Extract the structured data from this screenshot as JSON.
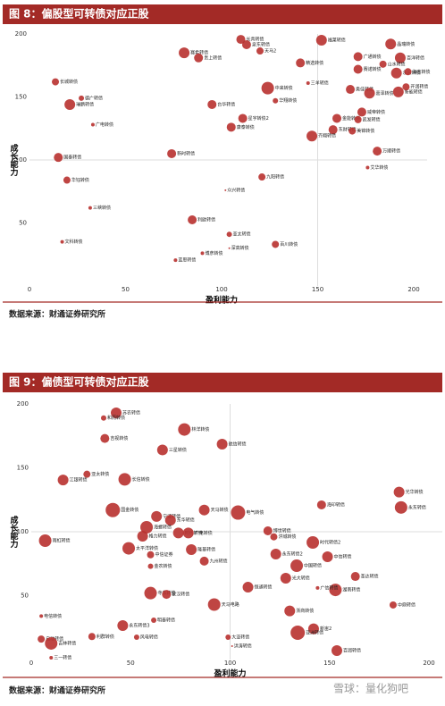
{
  "chart_data": [
    {
      "type": "scatter",
      "title": "图 8：偏股型可转债对应正股",
      "xlabel": "盈利能力",
      "ylabel": "成长能力",
      "xlim": [
        0,
        200
      ],
      "ylim": [
        0,
        200
      ],
      "xticks": [
        0,
        50,
        100,
        150,
        200
      ],
      "yticks": [
        50,
        100,
        150,
        200
      ],
      "reference_lines": {
        "x": 150,
        "y": 100
      },
      "color": "#b8312f",
      "labels": [
        "长青转债",
        "泉东转债",
        "天马2",
        "赛希转债",
        "贵上转债",
        "福莱转债",
        "晶瑞转债",
        "广通转债",
        "百洋转债",
        "山水转债",
        "赛诺转债",
        "精选转债",
        "永兴转债",
        "海吉转债",
        "中来转债",
        "三羊转债",
        "华翔转债",
        "奥佳转债",
        "嘉泽转债",
        "新能转债",
        "开润转债",
        "长城转债",
        "德广转债",
        "瑞鹏转债",
        "广电转债",
        "台华转债",
        "星宇转债2",
        "康泰转债",
        "威帝转债",
        "金能转债",
        "凯发转债",
        "东财转债",
        "美锦转债",
        "齐翔转债",
        "国泰转债",
        "新时转债",
        "万顺转债",
        "艾华转债",
        "华钰转债",
        "九阳转债",
        "众兴转债",
        "三峡转债",
        "利欧转债",
        "亚太转债",
        "文科转债",
        "百川转债",
        "博彦转债",
        "深高转债",
        "蓝思转债"
      ],
      "x": [
        110,
        113,
        120,
        80.5,
        88,
        152,
        188,
        171,
        193,
        184,
        171,
        141,
        191,
        197,
        124,
        145,
        128,
        167,
        177,
        192,
        196,
        13.5,
        27,
        21,
        33,
        95,
        111,
        105,
        173,
        160,
        171,
        158,
        168,
        147,
        15,
        74,
        181,
        176,
        19.5,
        121,
        102,
        31.6,
        84.7,
        104,
        17,
        128,
        90,
        104,
        76
      ],
      "y": [
        195.7,
        191.5,
        186.5,
        185,
        181,
        195,
        192,
        182,
        181,
        176,
        172,
        177,
        169,
        170,
        157,
        161,
        147,
        156,
        153,
        154,
        158,
        162,
        149,
        144,
        128,
        144,
        133,
        126,
        138,
        133,
        132,
        124,
        123,
        119,
        102,
        105,
        107,
        94,
        84,
        86.5,
        76,
        62,
        52.5,
        41,
        35,
        33,
        26,
        30,
        20.5
      ],
      "sizes": [
        5,
        5,
        4,
        6,
        5,
        6,
        6,
        5,
        6,
        4,
        5,
        5,
        6,
        4,
        7,
        2,
        3,
        5,
        6,
        6,
        4,
        4,
        3,
        6,
        2,
        5,
        5,
        5,
        5,
        5,
        4,
        5,
        4,
        6,
        5,
        5,
        5,
        2,
        4,
        4,
        1,
        2,
        5,
        3,
        2,
        4,
        2,
        1,
        2
      ]
    },
    {
      "type": "scatter",
      "title": "图 9：偏债型可转债对应正股",
      "xlabel": "盈利能力",
      "ylabel": "成长能力",
      "xlim": [
        0,
        200
      ],
      "ylim": [
        0,
        200
      ],
      "xticks": [
        0,
        50,
        100,
        150,
        200
      ],
      "yticks": [
        50,
        100,
        150,
        200
      ],
      "reference_lines": {
        "x": 100,
        "y": 100
      },
      "color": "#b8312f",
      "labels": [
        "苏农转债",
        "和而转债",
        "林洋转债",
        "吉视转债",
        "航信转债",
        "三星转债",
        "亚太转债",
        "江银转债",
        "长信转债",
        "光华转债",
        "永东转债",
        "海印转债",
        "国金转债",
        "宁波转债",
        "天马转债",
        "电气转债",
        "东华转债",
        "海螺转债",
        "格力转债",
        "时代转债",
        "广电转债",
        "博世转债",
        "洪城转债",
        "雨虹转债",
        "太平洋转债",
        "时代转债2",
        "隆基转债",
        "九州转债",
        "永东转债2",
        "中信转债",
        "中信证券",
        "金农转债",
        "中国转债",
        "圣达转债",
        "湖南转债",
        "光大转债",
        "广信转债",
        "恒通转债",
        "寺东转债",
        "蒙汉转债",
        "天马电路",
        "中鼎转债",
        "电信转债",
        "浙商转债",
        "永东转债3",
        "明泰转债",
        "新宙2",
        "亚洲转债",
        "利群转债",
        "风电转债",
        "大亚转债",
        "启动转债",
        "吉林转债",
        "百润转债",
        "三一转债",
        "洪涛转债"
      ],
      "x": [
        42.7,
        36.4,
        77,
        37,
        96,
        66,
        28,
        16,
        47,
        185,
        186,
        146,
        41,
        63,
        87,
        104,
        70,
        58,
        56,
        74,
        79,
        119,
        122,
        7,
        49,
        141.6,
        80.5,
        87,
        123,
        149,
        60,
        60,
        133.5,
        163,
        153,
        128,
        144,
        109,
        60,
        68,
        92,
        182,
        5,
        130,
        46,
        61.6,
        142,
        134,
        30.5,
        53,
        99,
        5,
        10,
        153.7,
        10,
        101
      ],
      "y": [
        193,
        189,
        180,
        173,
        168.5,
        164,
        145,
        140.5,
        141,
        131,
        119,
        121,
        117,
        112,
        117,
        115,
        109,
        103.5,
        96.5,
        99,
        99,
        100.7,
        96,
        93,
        87,
        91.6,
        86,
        77,
        82.5,
        80.4,
        82,
        73,
        73.4,
        65,
        54.5,
        63.6,
        56,
        56.6,
        52,
        51,
        43,
        42.7,
        34,
        38,
        26.6,
        30.8,
        24,
        21,
        18,
        17.5,
        17.5,
        16,
        12.6,
        7,
        1.4,
        10.5
      ],
      "sizes": [
        6,
        3,
        7,
        5,
        6,
        6,
        4,
        6,
        7,
        6,
        7,
        5,
        8,
        6,
        6,
        8,
        6,
        7,
        6,
        6,
        6,
        5,
        4,
        7,
        7,
        7,
        6,
        5,
        6,
        6,
        4,
        3,
        7,
        5,
        7,
        6,
        2,
        6,
        7,
        5,
        7,
        4,
        2,
        6,
        6,
        3,
        6,
        8,
        4,
        3,
        3,
        4,
        7,
        6,
        2,
        1
      ]
    }
  ],
  "sources": [
    "数据来源：财通证券研究所",
    "数据来源：财通证券研究所"
  ],
  "watermark": "雪球：量化狗吧"
}
